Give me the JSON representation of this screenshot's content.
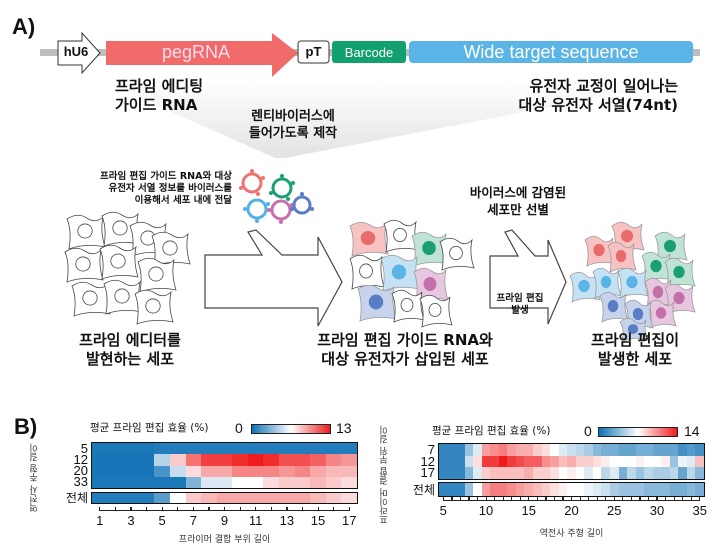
{
  "panel_a": {
    "label": "A)",
    "construct": {
      "promoter": "hU6",
      "pegrna": "pegRNA",
      "terminator": "pT",
      "barcode": "Barcode",
      "target": "Wide target sequence"
    },
    "colors": {
      "pegrna": "#f26b6b",
      "barcode": "#13a071",
      "target": "#5ab4e6"
    },
    "pegrna_caption": [
      "프라임 에디팅",
      "가이드 RNA"
    ],
    "target_caption": [
      "유전자 교정이 일어나는",
      "대상 유전자 서열(74nt)"
    ],
    "lenti_caption": [
      "렌티바이러스에",
      "들어가도록 제작"
    ],
    "virus_caption": [
      "프라임 편집 가이드 RNA와 대상",
      "유전자 서열 정보를 바이러스를",
      "이용해서 세포 내에 전달"
    ],
    "select_caption": [
      "바이러스에 감염된",
      "세포만 선별"
    ],
    "edit_caption": [
      "프라임 편집",
      "발생"
    ],
    "stage1": [
      "프라임 에디터를",
      "발현하는 세포"
    ],
    "stage2": [
      "프라임 편집 가이드 RNA와",
      "대상 유전자가 삽입된 세포"
    ],
    "stage3": [
      "프라임 편집이",
      "발생한 세포"
    ]
  },
  "panel_b": {
    "label": "B)"
  },
  "chart_data": [
    {
      "type": "heatmap",
      "title": "평균 프라임 편집 효율 (%)",
      "colorbar": {
        "min": 0,
        "max": 13,
        "min_label": "0",
        "max_label": "13",
        "colors": [
          "#1172b6",
          "#ffffff",
          "#ee1c1c"
        ]
      },
      "xlabel": "프라이머 결합 부위 길이",
      "ylabel": "역전사 주형 길이",
      "x": [
        1,
        2,
        3,
        4,
        5,
        6,
        7,
        8,
        9,
        10,
        11,
        12,
        13,
        14,
        15,
        16,
        17
      ],
      "x_tick_labels": [
        "1",
        "3",
        "5",
        "7",
        "9",
        "11",
        "13",
        "15",
        "17"
      ],
      "rows": [
        {
          "label": "5",
          "values": [
            0.3,
            0.3,
            0.3,
            0.3,
            0.5,
            0.5,
            0.5,
            0.5,
            0.5,
            0.5,
            0.5,
            0.5,
            0.5,
            0.5,
            0.5,
            0.5,
            0.5
          ]
        },
        {
          "label": "12",
          "values": [
            0.2,
            0.2,
            0.2,
            0.2,
            4.5,
            8,
            10.5,
            12,
            12,
            12.5,
            13,
            12.5,
            11.5,
            11.5,
            11,
            10,
            9.5
          ]
        },
        {
          "label": "20",
          "values": [
            0.2,
            0.2,
            0.2,
            0.2,
            1.5,
            5,
            7.5,
            9,
            9,
            10,
            10,
            10,
            9.5,
            10,
            9,
            8.5,
            8.5
          ]
        },
        {
          "label": "33",
          "values": [
            0.3,
            0.3,
            0.3,
            0.3,
            0.3,
            0.3,
            3,
            5.5,
            5.5,
            6.5,
            6.5,
            7.5,
            8,
            8,
            8.5,
            8,
            7.5
          ]
        }
      ],
      "overall": {
        "label": "전체",
        "values": [
          0.5,
          0.5,
          0.5,
          0.5,
          2,
          6.5,
          8,
          8.5,
          9,
          9,
          9,
          9,
          9,
          9,
          8.5,
          8,
          7.5
        ]
      }
    },
    {
      "type": "heatmap",
      "title": "평균 프라임 편집 효율 (%)",
      "colorbar": {
        "min": 0,
        "max": 14,
        "min_label": "0",
        "max_label": "14",
        "colors": [
          "#1172b6",
          "#ffffff",
          "#ee1c1c"
        ]
      },
      "xlabel": "역전사 주형 길이",
      "ylabel": "프라이머 결합 부위 길이",
      "x": [
        5,
        6,
        7,
        8,
        9,
        10,
        11,
        12,
        13,
        14,
        15,
        16,
        17,
        18,
        19,
        20,
        21,
        22,
        23,
        24,
        25,
        26,
        27,
        28,
        29,
        30,
        31,
        32,
        33,
        34,
        35
      ],
      "x_tick_labels": [
        "5",
        "10",
        "15",
        "20",
        "25",
        "30",
        "35"
      ],
      "rows": [
        {
          "label": "7",
          "values": [
            1,
            1,
            1,
            4,
            6,
            10,
            10.5,
            11,
            10,
            9.5,
            9.5,
            8.5,
            8,
            7,
            6,
            5.5,
            5,
            4.5,
            3.5,
            3,
            3,
            2.5,
            2.5,
            3,
            3,
            2.5,
            2.5,
            2.5,
            1.5,
            2,
            1.5
          ]
        },
        {
          "label": "12",
          "values": [
            1,
            1,
            1,
            5.5,
            8,
            13,
            13,
            14,
            13,
            12.5,
            12,
            12,
            10.5,
            10,
            9,
            9.5,
            8.5,
            8.5,
            8,
            7.5,
            7,
            7,
            7,
            7.5,
            7,
            7,
            7.5,
            4,
            6.5,
            6,
            9
          ]
        },
        {
          "label": "17",
          "values": [
            1,
            1,
            1,
            3.5,
            6,
            8.5,
            9,
            9,
            9,
            9,
            9.5,
            8.5,
            8.5,
            8,
            7,
            7.5,
            7,
            6,
            7,
            5,
            6,
            3,
            5,
            4,
            5,
            4.5,
            4.5,
            5,
            2.5,
            5,
            3.5
          ]
        }
      ],
      "overall": {
        "label": "전체",
        "values": [
          1,
          1,
          1,
          4,
          7,
          10,
          11,
          11,
          10.5,
          10,
          9.5,
          9,
          8.5,
          8,
          7.5,
          7,
          7,
          6.5,
          6,
          5.5,
          4.5,
          4,
          4,
          4,
          3.5,
          3.5,
          3.5,
          3,
          3,
          3.5,
          3
        ]
      }
    }
  ]
}
